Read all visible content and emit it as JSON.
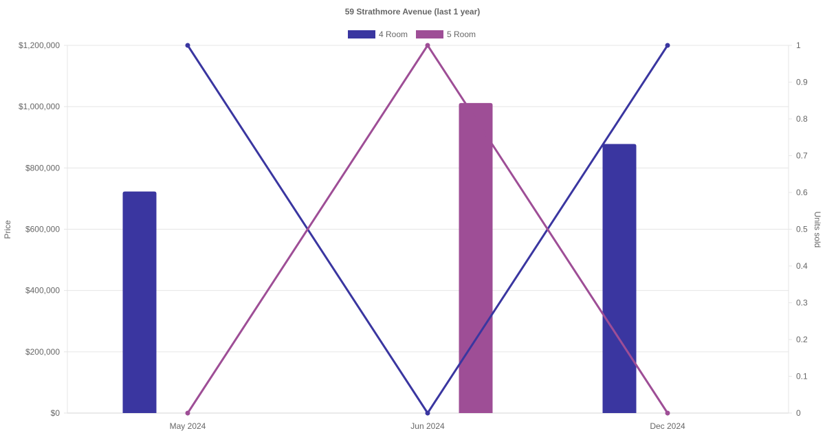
{
  "chart_data": {
    "type": "bar",
    "title": "59 Strathmore Avenue (last 1 year)",
    "categories": [
      "May 2024",
      "Jun 2024",
      "Dec 2024"
    ],
    "legend": [
      {
        "name": "4 Room",
        "color": "#3a36a0"
      },
      {
        "name": "5 Room",
        "color": "#9e4e96"
      }
    ],
    "bar_series": [
      {
        "name": "4 Room",
        "color": "#3a36a0",
        "values": [
          723000,
          null,
          878000
        ]
      },
      {
        "name": "5 Room",
        "color": "#9e4e96",
        "values": [
          null,
          1012000,
          null
        ]
      }
    ],
    "line_series": [
      {
        "name": "4 Room",
        "color": "#3a36a0",
        "values": [
          1,
          0,
          1
        ]
      },
      {
        "name": "5 Room",
        "color": "#9e4e96",
        "values": [
          0,
          1,
          0
        ]
      }
    ],
    "y_left": {
      "label": "Price",
      "ylim": [
        0,
        1200000
      ],
      "ticks": [
        "$0",
        "$200,000",
        "$400,000",
        "$600,000",
        "$800,000",
        "$1,000,000",
        "$1,200,000"
      ],
      "tick_values": [
        0,
        200000,
        400000,
        600000,
        800000,
        1000000,
        1200000
      ]
    },
    "y_right": {
      "label": "Units sold",
      "ylim": [
        0,
        1
      ],
      "ticks": [
        "0",
        "0.1",
        "0.2",
        "0.3",
        "0.4",
        "0.5",
        "0.6",
        "0.7",
        "0.8",
        "0.9",
        "1"
      ],
      "tick_values": [
        0,
        0.1,
        0.2,
        0.3,
        0.4,
        0.5,
        0.6,
        0.7,
        0.8,
        0.9,
        1
      ]
    },
    "grid": true,
    "legend_position": "top-center"
  }
}
